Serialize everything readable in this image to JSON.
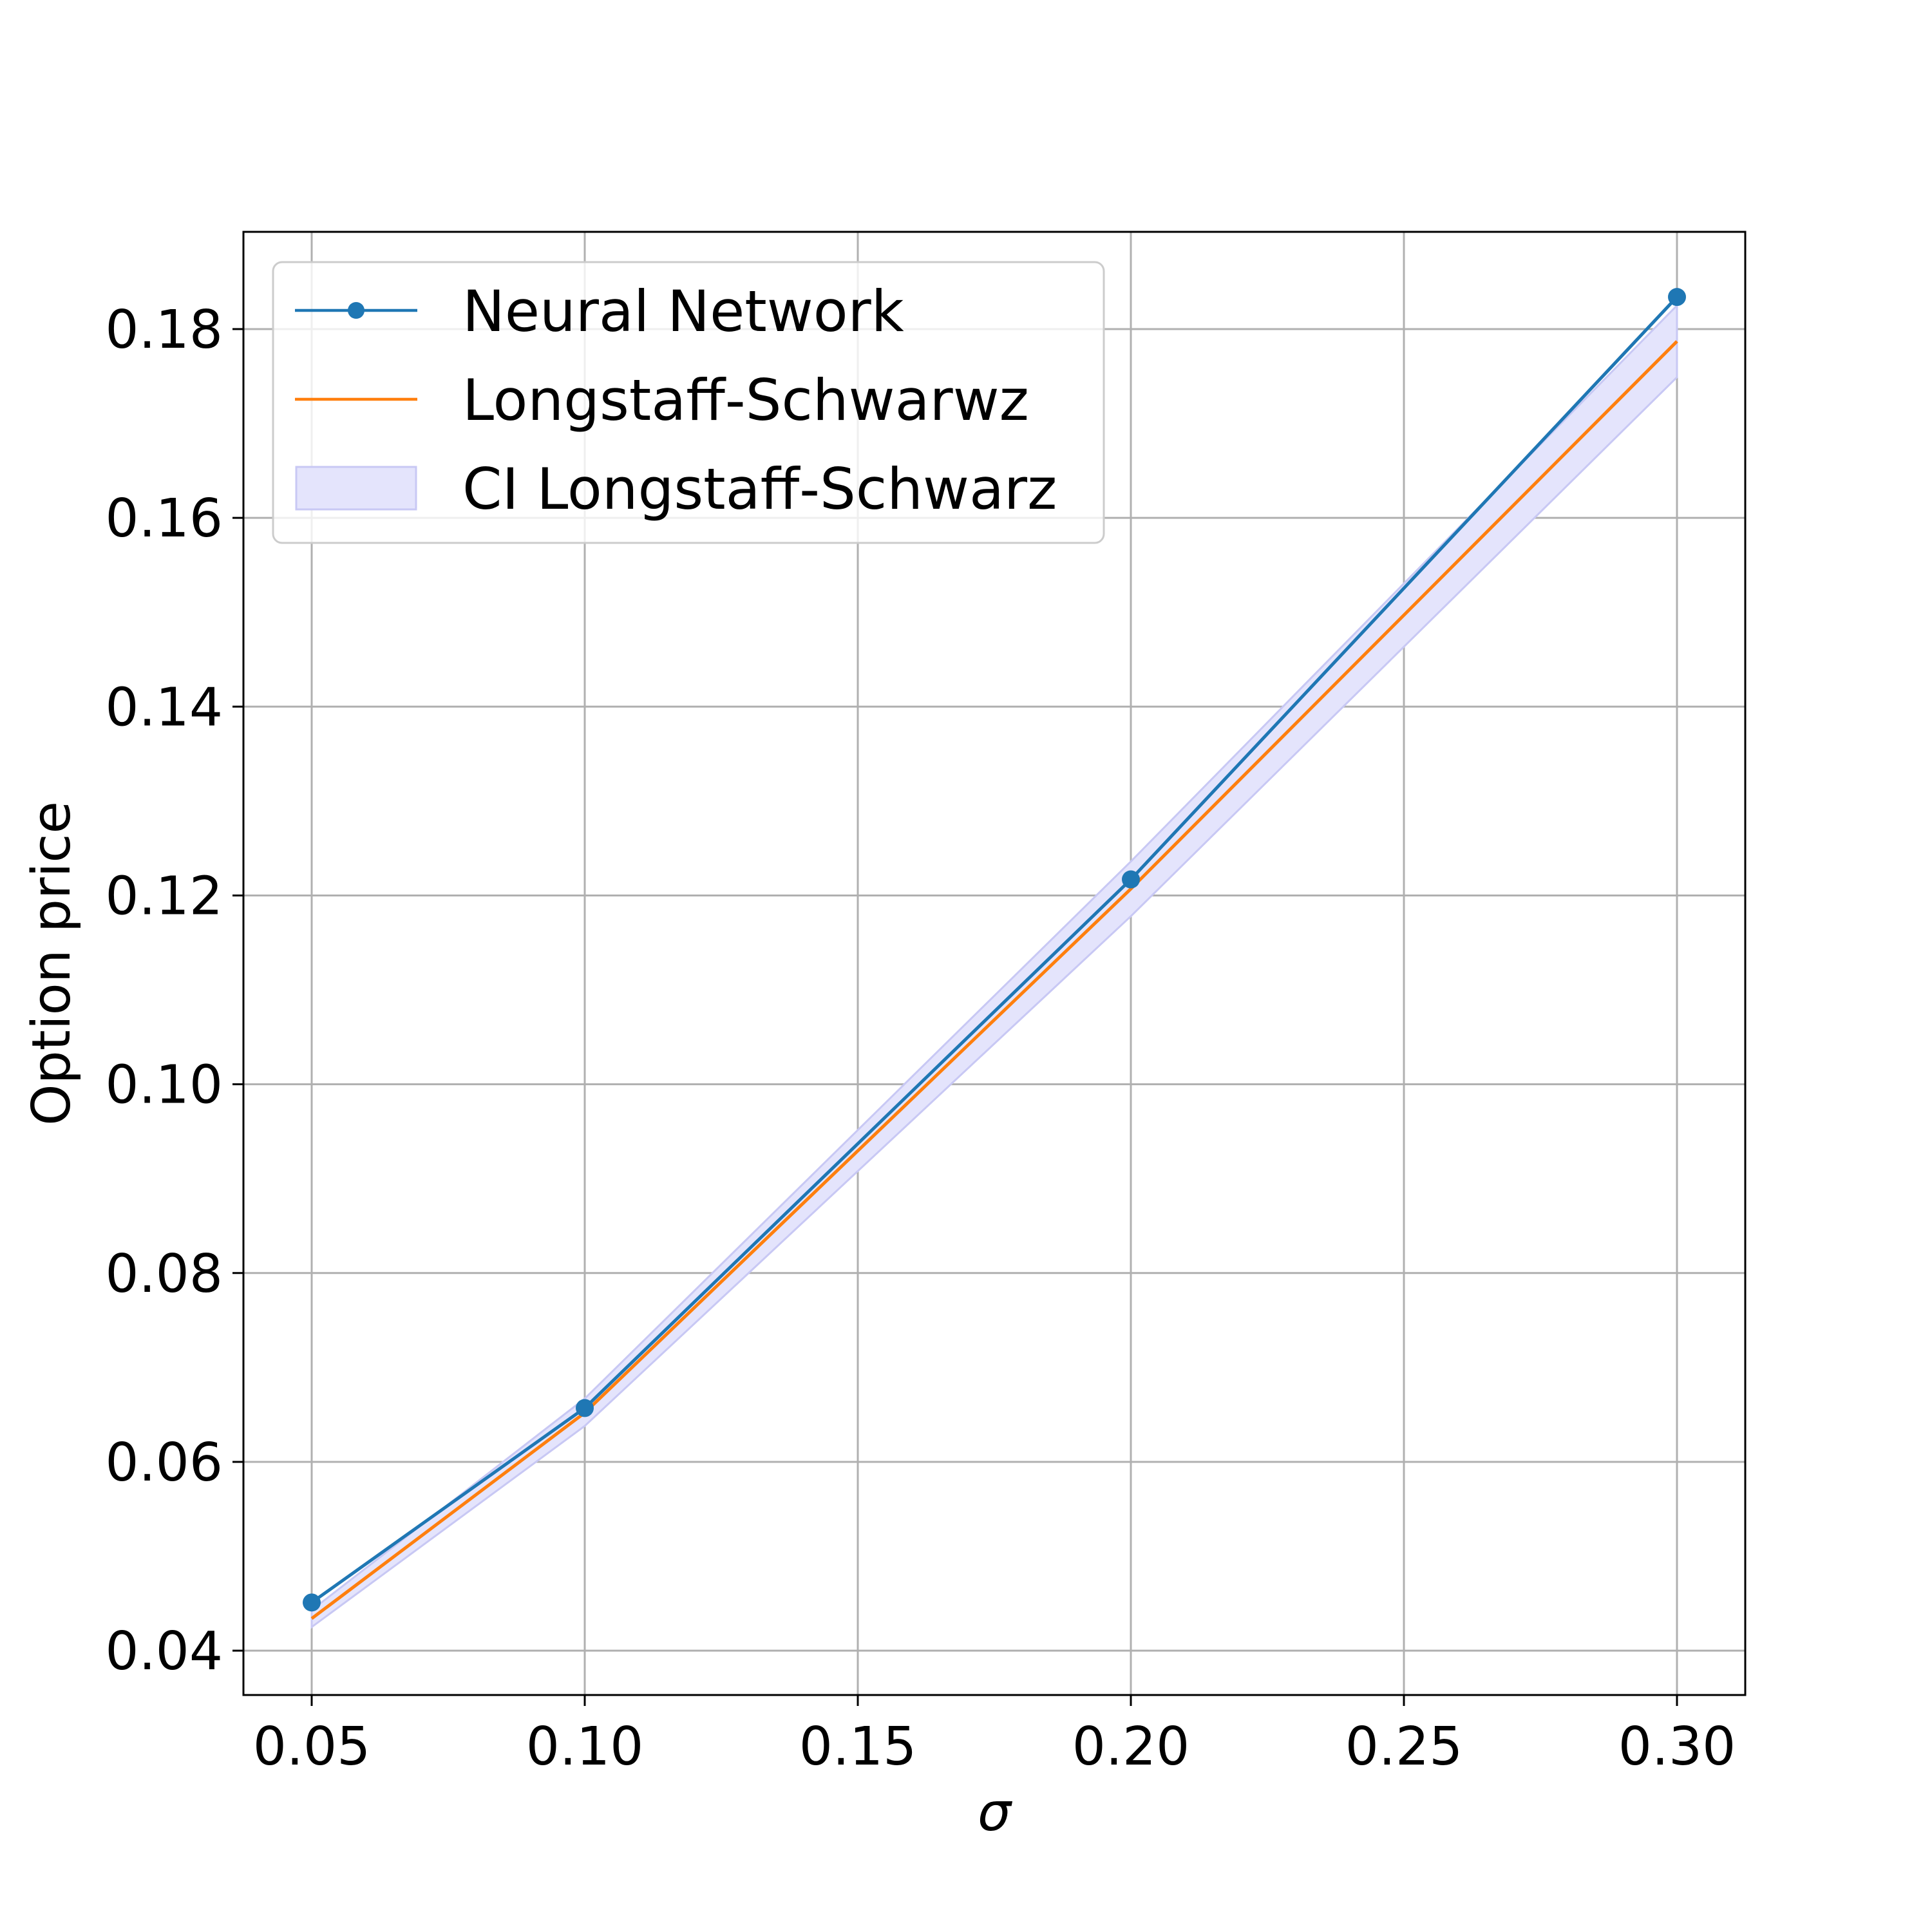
{
  "chart_data": {
    "type": "line",
    "title": "",
    "xlabel": "σ",
    "ylabel": "Option price",
    "xlim": [
      0.0375,
      0.3125
    ],
    "ylim": [
      0.0353,
      0.1903
    ],
    "xticks": [
      0.05,
      0.1,
      0.15,
      0.2,
      0.25,
      0.3
    ],
    "xtick_labels": [
      "0.05",
      "0.10",
      "0.15",
      "0.20",
      "0.25",
      "0.30"
    ],
    "yticks": [
      0.04,
      0.06,
      0.08,
      0.1,
      0.12,
      0.14,
      0.16,
      0.18
    ],
    "ytick_labels": [
      "0.04",
      "0.06",
      "0.08",
      "0.10",
      "0.12",
      "0.14",
      "0.16",
      "0.18"
    ],
    "grid": true,
    "legend_position": "top-left",
    "x": [
      0.05,
      0.1,
      0.2,
      0.3
    ],
    "series": [
      {
        "name": "Neural Network",
        "color": "#1f77b4",
        "marker": "circle",
        "values": [
          0.0451,
          0.0657,
          0.1217,
          0.1834
        ]
      },
      {
        "name": "Longstaff-Schwarwz",
        "color": "#ff7f0e",
        "marker": "none",
        "values": [
          0.0434,
          0.0652,
          0.1207,
          0.1787
        ]
      }
    ],
    "band": {
      "name": "CI Longstaff-Schwarz",
      "color": "#e4e4fc",
      "edge_color": "#c8c8f4",
      "lower": [
        0.0425,
        0.0638,
        0.1178,
        0.1749
      ],
      "upper": [
        0.0443,
        0.0667,
        0.1236,
        0.1825
      ]
    }
  }
}
